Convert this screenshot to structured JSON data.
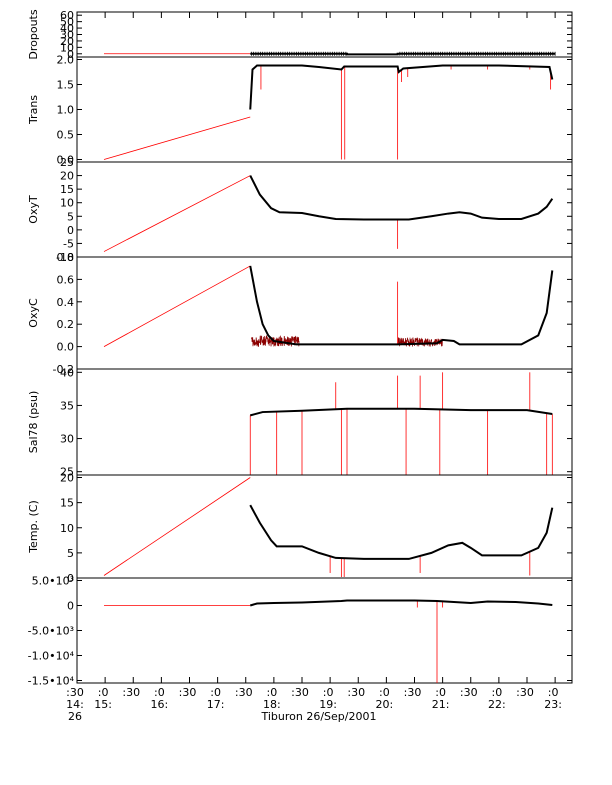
{
  "x_axis": {
    "title": "Tiburon 26/Sep/2001",
    "ticks": [
      {
        "top": ":30",
        "mid": "14:",
        "bot": "26",
        "t": 14.5
      },
      {
        "top": ":0",
        "mid": "15:",
        "bot": "",
        "t": 15.0
      },
      {
        "top": ":30",
        "mid": "",
        "bot": "",
        "t": 15.5
      },
      {
        "top": ":0",
        "mid": "16:",
        "bot": "",
        "t": 16.0
      },
      {
        "top": ":30",
        "mid": "",
        "bot": "",
        "t": 16.5
      },
      {
        "top": ":0",
        "mid": "17:",
        "bot": "",
        "t": 17.0
      },
      {
        "top": ":30",
        "mid": "",
        "bot": "",
        "t": 17.5
      },
      {
        "top": ":0",
        "mid": "18:",
        "bot": "",
        "t": 18.0
      },
      {
        "top": ":30",
        "mid": "",
        "bot": "",
        "t": 18.5
      },
      {
        "top": ":0",
        "mid": "19:",
        "bot": "",
        "t": 19.0
      },
      {
        "top": ":30",
        "mid": "",
        "bot": "",
        "t": 19.5
      },
      {
        "top": ":0",
        "mid": "20:",
        "bot": "",
        "t": 20.0
      },
      {
        "top": ":30",
        "mid": "",
        "bot": "",
        "t": 20.5
      },
      {
        "top": ":0",
        "mid": "21:",
        "bot": "",
        "t": 21.0
      },
      {
        "top": ":30",
        "mid": "",
        "bot": "",
        "t": 21.5
      },
      {
        "top": ":0",
        "mid": "22:",
        "bot": "",
        "t": 22.0
      },
      {
        "top": ":30",
        "mid": "",
        "bot": "",
        "t": 22.5
      },
      {
        "top": ":0",
        "mid": "23:",
        "bot": "",
        "t": 23.0
      }
    ],
    "range": [
      14.5,
      23.3
    ]
  },
  "colors": {
    "data": "#000000",
    "interp": "#ff0000",
    "noise": "#8b0000"
  },
  "chart_data": [
    {
      "type": "line",
      "ylabel": "Dropouts",
      "ylim": [
        -5,
        65
      ],
      "ticks": [
        {
          "v": 0,
          "label": "0"
        },
        {
          "v": 10,
          "label": "10"
        },
        {
          "v": 20,
          "label": "20"
        },
        {
          "v": 30,
          "label": "30"
        },
        {
          "v": 40,
          "label": "40"
        },
        {
          "v": 50,
          "label": "50"
        },
        {
          "v": 60,
          "label": "60"
        }
      ],
      "interp": [
        [
          14.98,
          0
        ],
        [
          17.58,
          0
        ]
      ],
      "data": [
        [
          17.58,
          0
        ],
        [
          19.3,
          0
        ],
        [
          19.3,
          -1
        ],
        [
          20.2,
          -1
        ],
        [
          20.2,
          0
        ],
        [
          23.0,
          0
        ]
      ],
      "spikes": [],
      "markers": true
    },
    {
      "type": "line",
      "ylabel": "Trans",
      "ylim": [
        -0.05,
        2.05
      ],
      "ticks": [
        {
          "v": 0.0,
          "label": "0.0"
        },
        {
          "v": 0.5,
          "label": "0.5"
        },
        {
          "v": 1.0,
          "label": "1.0"
        },
        {
          "v": 1.5,
          "label": "1.5"
        },
        {
          "v": 2.0,
          "label": "2.0"
        }
      ],
      "interp": [
        [
          14.98,
          0.0
        ],
        [
          17.58,
          0.85
        ]
      ],
      "data": [
        [
          17.58,
          1.0
        ],
        [
          17.62,
          1.8
        ],
        [
          17.7,
          1.88
        ],
        [
          18.5,
          1.88
        ],
        [
          18.8,
          1.85
        ],
        [
          19.2,
          1.8
        ],
        [
          19.25,
          1.86
        ],
        [
          20.2,
          1.86
        ],
        [
          20.22,
          1.75
        ],
        [
          20.3,
          1.82
        ],
        [
          21.0,
          1.88
        ],
        [
          22.0,
          1.88
        ],
        [
          22.9,
          1.85
        ],
        [
          22.95,
          1.6
        ]
      ],
      "spikes": [
        [
          17.77,
          1.4
        ],
        [
          19.2,
          0.0
        ],
        [
          19.26,
          0.0
        ],
        [
          20.2,
          0.0
        ],
        [
          20.27,
          1.55
        ],
        [
          20.38,
          1.65
        ],
        [
          21.15,
          1.8
        ],
        [
          21.8,
          1.8
        ],
        [
          22.55,
          1.8
        ],
        [
          22.92,
          1.4
        ]
      ],
      "markers": false
    },
    {
      "type": "line",
      "ylabel": "OxyT",
      "ylim": [
        -10,
        25
      ],
      "ticks": [
        {
          "v": -10,
          "label": "-10"
        },
        {
          "v": -5,
          "label": "-5"
        },
        {
          "v": 0,
          "label": "0"
        },
        {
          "v": 5,
          "label": "5"
        },
        {
          "v": 10,
          "label": "10"
        },
        {
          "v": 15,
          "label": "15"
        },
        {
          "v": 20,
          "label": "20"
        },
        {
          "v": 25,
          "label": "25"
        }
      ],
      "interp": [
        [
          14.98,
          -8
        ],
        [
          17.58,
          20
        ]
      ],
      "data": [
        [
          17.58,
          20
        ],
        [
          17.75,
          13
        ],
        [
          17.95,
          8
        ],
        [
          18.1,
          6.5
        ],
        [
          18.5,
          6.2
        ],
        [
          18.8,
          5
        ],
        [
          19.1,
          4
        ],
        [
          19.6,
          3.8
        ],
        [
          20.4,
          3.8
        ],
        [
          20.8,
          5
        ],
        [
          21.1,
          6
        ],
        [
          21.3,
          6.5
        ],
        [
          21.5,
          6
        ],
        [
          21.7,
          4.5
        ],
        [
          22.0,
          4
        ],
        [
          22.4,
          4
        ],
        [
          22.7,
          6
        ],
        [
          22.85,
          8.5
        ],
        [
          22.95,
          11.5
        ]
      ],
      "spikes": [
        [
          20.2,
          -7
        ]
      ],
      "markers": false
    },
    {
      "type": "line",
      "ylabel": "OxyC",
      "ylim": [
        -0.2,
        0.8
      ],
      "ticks": [
        {
          "v": -0.2,
          "label": "-0.2"
        },
        {
          "v": 0.0,
          "label": "0.0"
        },
        {
          "v": 0.2,
          "label": "0.2"
        },
        {
          "v": 0.4,
          "label": "0.4"
        },
        {
          "v": 0.6,
          "label": "0.6"
        },
        {
          "v": 0.8,
          "label": "0.8"
        }
      ],
      "interp": [
        [
          14.98,
          0.0
        ],
        [
          17.58,
          0.72
        ]
      ],
      "data": [
        [
          17.58,
          0.72
        ],
        [
          17.7,
          0.4
        ],
        [
          17.8,
          0.2
        ],
        [
          17.9,
          0.1
        ],
        [
          18.0,
          0.05
        ],
        [
          18.4,
          0.02
        ],
        [
          20.2,
          0.02
        ],
        [
          20.9,
          0.03
        ],
        [
          21.0,
          0.06
        ],
        [
          21.2,
          0.05
        ],
        [
          21.3,
          0.02
        ],
        [
          22.4,
          0.02
        ],
        [
          22.7,
          0.1
        ],
        [
          22.85,
          0.3
        ],
        [
          22.95,
          0.68
        ]
      ],
      "spikes": [
        [
          20.2,
          0.58
        ]
      ],
      "noise": [
        [
          17.6,
          18.45,
          0.0,
          0.1
        ],
        [
          20.2,
          21.0,
          0.0,
          0.08
        ]
      ],
      "markers": false
    },
    {
      "type": "line",
      "ylabel": "Sal78 (psu)",
      "ylim": [
        24.5,
        40.5
      ],
      "ticks": [
        {
          "v": 25,
          "label": "25"
        },
        {
          "v": 30,
          "label": "30"
        },
        {
          "v": 35,
          "label": "35"
        },
        {
          "v": 40,
          "label": "40"
        }
      ],
      "interp": [
        [
          14.98,
          24.5
        ],
        [
          17.58,
          24.5
        ]
      ],
      "data": [
        [
          17.58,
          33.5
        ],
        [
          17.8,
          34.0
        ],
        [
          18.5,
          34.2
        ],
        [
          19.3,
          34.5
        ],
        [
          20.5,
          34.5
        ],
        [
          21.5,
          34.3
        ],
        [
          22.5,
          34.3
        ],
        [
          22.95,
          33.7
        ]
      ],
      "spikes": [
        [
          17.58,
          24.5
        ],
        [
          18.05,
          24.5
        ],
        [
          18.5,
          24.5
        ],
        [
          19.1,
          38.5
        ],
        [
          19.2,
          24.5
        ],
        [
          19.3,
          24.5
        ],
        [
          20.2,
          39.5
        ],
        [
          20.35,
          24.5
        ],
        [
          20.6,
          39.5
        ],
        [
          20.95,
          24.5
        ],
        [
          21.0,
          40
        ],
        [
          21.8,
          24.5
        ],
        [
          22.55,
          40
        ],
        [
          22.85,
          24.5
        ],
        [
          22.95,
          24.5
        ]
      ],
      "markers": false
    },
    {
      "type": "line",
      "ylabel": "Temp. (C)",
      "ylim": [
        0,
        20.5
      ],
      "ticks": [
        {
          "v": 0,
          "label": "0"
        },
        {
          "v": 5,
          "label": "5"
        },
        {
          "v": 10,
          "label": "10"
        },
        {
          "v": 15,
          "label": "15"
        },
        {
          "v": 20,
          "label": "20"
        }
      ],
      "interp": [
        [
          14.98,
          0.5
        ],
        [
          17.58,
          20
        ]
      ],
      "data": [
        [
          17.58,
          14.5
        ],
        [
          17.75,
          11
        ],
        [
          17.95,
          7.5
        ],
        [
          18.05,
          6.3
        ],
        [
          18.5,
          6.3
        ],
        [
          18.8,
          5
        ],
        [
          19.1,
          4
        ],
        [
          19.6,
          3.8
        ],
        [
          20.4,
          3.8
        ],
        [
          20.8,
          5
        ],
        [
          21.1,
          6.5
        ],
        [
          21.35,
          7
        ],
        [
          21.5,
          6
        ],
        [
          21.7,
          4.5
        ],
        [
          22.0,
          4.5
        ],
        [
          22.4,
          4.5
        ],
        [
          22.7,
          6
        ],
        [
          22.85,
          9
        ],
        [
          22.95,
          14
        ]
      ],
      "spikes": [
        [
          19.0,
          1.0
        ],
        [
          19.2,
          0.2
        ],
        [
          19.25,
          0.2
        ],
        [
          20.6,
          1.0
        ],
        [
          22.55,
          0.5
        ]
      ],
      "markers": false
    },
    {
      "type": "line",
      "ylabel": "",
      "ylim": [
        -15500,
        5500
      ],
      "ticks": [
        {
          "v": -15000,
          "label": "-1.5•10⁴"
        },
        {
          "v": -10000,
          "label": "-1.0•10⁴"
        },
        {
          "v": -5000,
          "label": "-5.0•10³"
        },
        {
          "v": 0,
          "label": "0"
        },
        {
          "v": 5000,
          "label": "5.0•10³"
        }
      ],
      "interp": [
        [
          14.98,
          0
        ],
        [
          17.58,
          0
        ]
      ],
      "data": [
        [
          17.58,
          0
        ],
        [
          17.7,
          400
        ],
        [
          18.0,
          500
        ],
        [
          18.5,
          600
        ],
        [
          19.2,
          900
        ],
        [
          19.3,
          1000
        ],
        [
          20.5,
          1000
        ],
        [
          20.9,
          900
        ],
        [
          21.2,
          700
        ],
        [
          21.5,
          500
        ],
        [
          21.8,
          800
        ],
        [
          22.3,
          700
        ],
        [
          22.7,
          400
        ],
        [
          22.95,
          100
        ]
      ],
      "spikes": [
        [
          20.9,
          -15500
        ],
        [
          21.0,
          -400
        ],
        [
          20.55,
          -400
        ]
      ],
      "markers": false
    }
  ]
}
